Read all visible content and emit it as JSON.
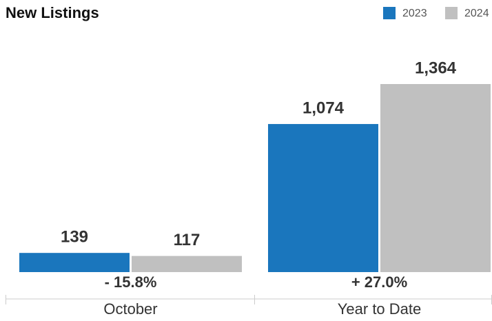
{
  "chart_data": {
    "type": "bar",
    "title": "New Listings",
    "categories": [
      "October",
      "Year to Date"
    ],
    "series": [
      {
        "name": "2023",
        "color": "#1a76bd",
        "values": [
          139,
          1074
        ],
        "value_labels": [
          "139",
          "1,074"
        ]
      },
      {
        "name": "2024",
        "color": "#c0c0c0",
        "values": [
          117,
          1364
        ],
        "value_labels": [
          "117",
          "1,364"
        ]
      }
    ],
    "annotations": [
      "- 15.8%",
      "+ 27.0%"
    ],
    "legend": "top-right"
  }
}
